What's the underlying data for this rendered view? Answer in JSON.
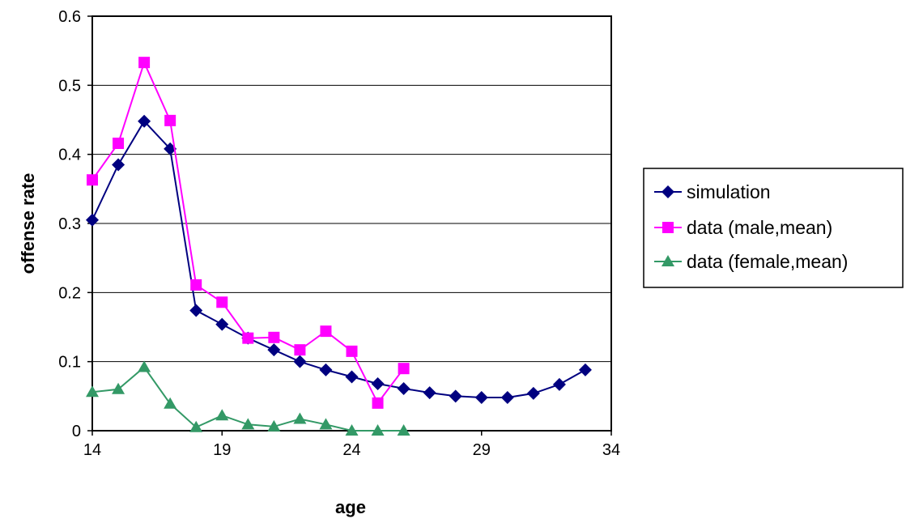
{
  "chart_data": {
    "type": "line",
    "title": "",
    "xlabel": "age",
    "ylabel": "offense rate",
    "xlim": [
      14,
      34
    ],
    "ylim": [
      0,
      0.6
    ],
    "x_ticks": [
      14,
      19,
      24,
      29,
      34
    ],
    "x_tick_labels": [
      "14",
      "19",
      "24",
      "29",
      "34"
    ],
    "y_ticks": [
      0,
      0.1,
      0.2,
      0.3,
      0.4,
      0.5,
      0.6
    ],
    "y_tick_labels": [
      "0",
      "0.1",
      "0.2",
      "0.3",
      "0.4",
      "0.5",
      "0.6"
    ],
    "grid": "horizontal",
    "legend_position": "right",
    "series": [
      {
        "name": "simulation",
        "color": "#000080",
        "marker": "diamond",
        "x": [
          14,
          15,
          16,
          17,
          18,
          19,
          20,
          21,
          22,
          23,
          24,
          25,
          26,
          27,
          28,
          29,
          30,
          31,
          32,
          33
        ],
        "y": [
          0.305,
          0.385,
          0.448,
          0.408,
          0.174,
          0.154,
          0.134,
          0.117,
          0.1,
          0.088,
          0.078,
          0.068,
          0.061,
          0.055,
          0.05,
          0.048,
          0.048,
          0.054,
          0.067,
          0.088
        ]
      },
      {
        "name": "data (male,mean)",
        "color": "#ff00ff",
        "marker": "square",
        "x": [
          14,
          15,
          16,
          17,
          18,
          19,
          20,
          21,
          22,
          23,
          24,
          25,
          26
        ],
        "y": [
          0.363,
          0.416,
          0.533,
          0.449,
          0.211,
          0.186,
          0.134,
          0.135,
          0.117,
          0.144,
          0.115,
          0.04,
          0.09
        ]
      },
      {
        "name": "data (female,mean)",
        "color": "#339966",
        "marker": "triangle",
        "x": [
          14,
          15,
          16,
          17,
          18,
          19,
          20,
          21,
          22,
          23,
          24,
          25,
          26
        ],
        "y": [
          0.056,
          0.06,
          0.092,
          0.039,
          0.005,
          0.022,
          0.009,
          0.006,
          0.017,
          0.009,
          0.0,
          0.0,
          0.0
        ]
      }
    ]
  }
}
